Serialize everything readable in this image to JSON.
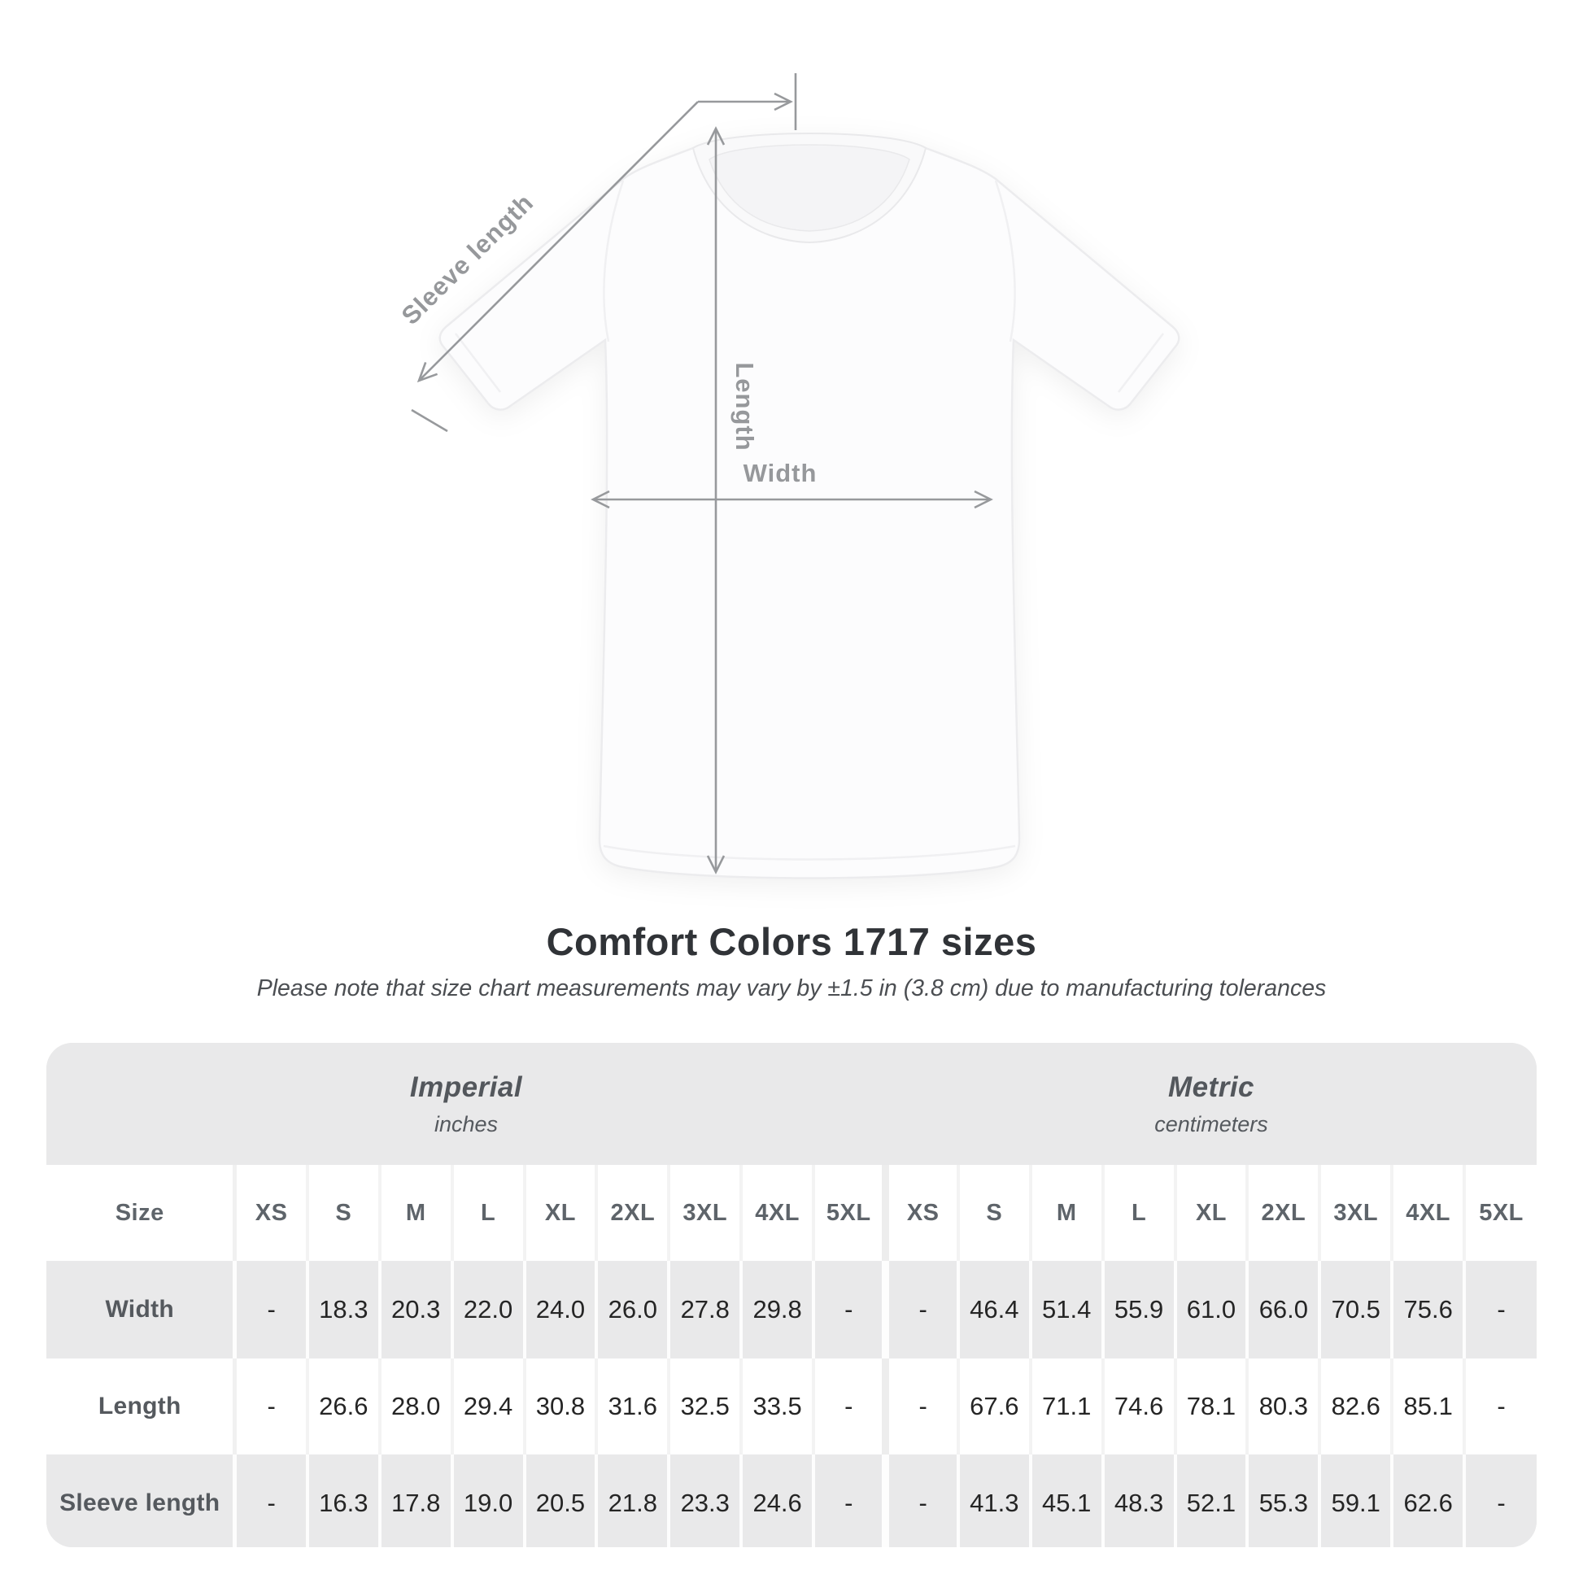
{
  "title": "Comfort Colors 1717 sizes",
  "subtitle": "Please note that size chart measurements may vary by ±1.5 in (3.8 cm) due to manufacturing tolerances",
  "diagram": {
    "labels": {
      "sleeve_length": "Sleeve length",
      "length": "Length",
      "width": "Width"
    },
    "annotation_color": "#97999c"
  },
  "chart_data": {
    "type": "table",
    "title": "Comfort Colors 1717 sizes",
    "size_header": "Size",
    "groups": [
      {
        "label": "Imperial",
        "sublabel": "inches"
      },
      {
        "label": "Metric",
        "sublabel": "centimeters"
      }
    ],
    "sizes": [
      "XS",
      "S",
      "M",
      "L",
      "XL",
      "2XL",
      "3XL",
      "4XL",
      "5XL"
    ],
    "rows": [
      {
        "label": "Width",
        "imperial": [
          "-",
          "18.3",
          "20.3",
          "22.0",
          "24.0",
          "26.0",
          "27.8",
          "29.8",
          "-"
        ],
        "metric": [
          "-",
          "46.4",
          "51.4",
          "55.9",
          "61.0",
          "66.0",
          "70.5",
          "75.6",
          "-"
        ]
      },
      {
        "label": "Length",
        "imperial": [
          "-",
          "26.6",
          "28.0",
          "29.4",
          "30.8",
          "31.6",
          "32.5",
          "33.5",
          "-"
        ],
        "metric": [
          "-",
          "67.6",
          "71.1",
          "74.6",
          "78.1",
          "80.3",
          "82.6",
          "85.1",
          "-"
        ]
      },
      {
        "label": "Sleeve length",
        "imperial": [
          "-",
          "16.3",
          "17.8",
          "19.0",
          "20.5",
          "21.8",
          "23.3",
          "24.6",
          "-"
        ],
        "metric": [
          "-",
          "41.3",
          "45.1",
          "48.3",
          "52.1",
          "55.3",
          "59.1",
          "62.6",
          "-"
        ]
      }
    ],
    "table_bg": "#e9e9ea"
  }
}
